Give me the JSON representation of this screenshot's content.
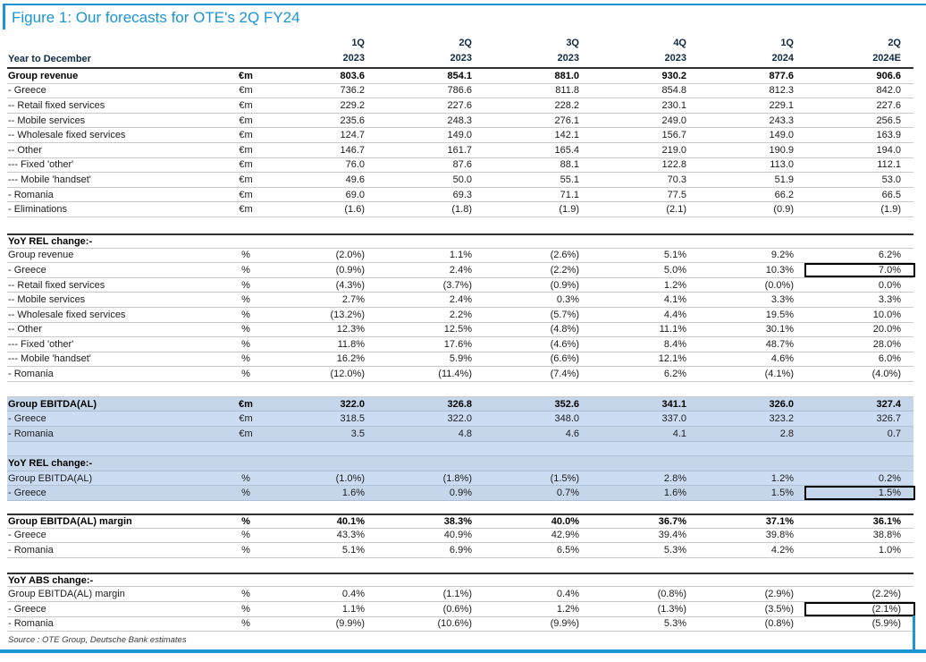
{
  "figure": {
    "title": "Figure 1: Our forecasts for OTE's 2Q FY24",
    "source": "Source : OTE Group, Deutsche Bank estimates"
  },
  "colors": {
    "accent_blue": "#1b95d1",
    "header_navy": "#102a43",
    "highlight_blue_a": "#c6d6ea",
    "highlight_blue_b": "#ccdcf2",
    "box_border": "#000000"
  },
  "table": {
    "corner_label": "Year to December",
    "columns": [
      {
        "q": "1Q",
        "year": "2023"
      },
      {
        "q": "2Q",
        "year": "2023"
      },
      {
        "q": "3Q",
        "year": "2023"
      },
      {
        "q": "4Q",
        "year": "2023"
      },
      {
        "q": "1Q",
        "year": "2024"
      },
      {
        "q": "2Q",
        "year": "2024E"
      }
    ],
    "sections": [
      {
        "name": "group-revenue",
        "highlight": false,
        "rows": [
          {
            "label": "Group revenue",
            "unit": "€m",
            "bold": true,
            "values": [
              "803.6",
              "854.1",
              "881.0",
              "930.2",
              "877.6",
              "906.6"
            ]
          },
          {
            "label": "- Greece",
            "unit": "€m",
            "values": [
              "736.2",
              "786.6",
              "811.8",
              "854.8",
              "812.3",
              "842.0"
            ]
          },
          {
            "label": "-- Retail fixed services",
            "unit": "€m",
            "values": [
              "229.2",
              "227.6",
              "228.2",
              "230.1",
              "229.1",
              "227.6"
            ]
          },
          {
            "label": "-- Mobile services",
            "unit": "€m",
            "values": [
              "235.6",
              "248.3",
              "276.1",
              "249.0",
              "243.3",
              "256.5"
            ]
          },
          {
            "label": "-- Wholesale fixed services",
            "unit": "€m",
            "values": [
              "124.7",
              "149.0",
              "142.1",
              "156.7",
              "149.0",
              "163.9"
            ]
          },
          {
            "label": "-- Other",
            "unit": "€m",
            "values": [
              "146.7",
              "161.7",
              "165.4",
              "219.0",
              "190.9",
              "194.0"
            ]
          },
          {
            "label": "--- Fixed 'other'",
            "unit": "€m",
            "values": [
              "76.0",
              "87.6",
              "88.1",
              "122.8",
              "113.0",
              "112.1"
            ]
          },
          {
            "label": "--- Mobile 'handset'",
            "unit": "€m",
            "values": [
              "49.6",
              "50.0",
              "55.1",
              "70.3",
              "51.9",
              "53.0"
            ]
          },
          {
            "label": "- Romania",
            "unit": "€m",
            "values": [
              "69.0",
              "69.3",
              "71.1",
              "77.5",
              "66.2",
              "66.5"
            ]
          },
          {
            "label": "- Eliminations",
            "unit": "€m",
            "values": [
              "(1.6)",
              "(1.8)",
              "(1.9)",
              "(2.1)",
              "(0.9)",
              "(1.9)"
            ]
          }
        ]
      },
      {
        "name": "yoy-rel-revenue",
        "highlight": false,
        "rows": [
          {
            "type": "heading",
            "label": "YoY REL change:-"
          },
          {
            "label": "Group revenue",
            "unit": "%",
            "values": [
              "(2.0%)",
              "1.1%",
              "(2.6%)",
              "5.1%",
              "9.2%",
              "6.2%"
            ]
          },
          {
            "label": "- Greece",
            "unit": "%",
            "box_last": true,
            "values": [
              "(0.9%)",
              "2.4%",
              "(2.2%)",
              "5.0%",
              "10.3%",
              "7.0%"
            ]
          },
          {
            "label": "-- Retail fixed services",
            "unit": "%",
            "values": [
              "(4.3%)",
              "(3.7%)",
              "(0.9%)",
              "1.2%",
              "(0.0%)",
              "0.0%"
            ]
          },
          {
            "label": "-- Mobile services",
            "unit": "%",
            "values": [
              "2.7%",
              "2.4%",
              "0.3%",
              "4.1%",
              "3.3%",
              "3.3%"
            ]
          },
          {
            "label": "-- Wholesale fixed services",
            "unit": "%",
            "values": [
              "(13.2%)",
              "2.2%",
              "(5.7%)",
              "4.4%",
              "19.5%",
              "10.0%"
            ]
          },
          {
            "label": "-- Other",
            "unit": "%",
            "values": [
              "12.3%",
              "12.5%",
              "(4.8%)",
              "11.1%",
              "30.1%",
              "20.0%"
            ]
          },
          {
            "label": "--- Fixed 'other'",
            "unit": "%",
            "values": [
              "11.8%",
              "17.6%",
              "(4.6%)",
              "8.4%",
              "48.7%",
              "28.0%"
            ]
          },
          {
            "label": "--- Mobile 'handset'",
            "unit": "%",
            "values": [
              "16.2%",
              "5.9%",
              "(6.6%)",
              "12.1%",
              "4.6%",
              "6.0%"
            ]
          },
          {
            "label": "- Romania",
            "unit": "%",
            "values": [
              "(12.0%)",
              "(11.4%)",
              "(7.4%)",
              "6.2%",
              "(4.1%)",
              "(4.0%)"
            ]
          }
        ]
      },
      {
        "name": "group-ebitda",
        "highlight": true,
        "rows": [
          {
            "label": "Group EBITDA(AL)",
            "unit": "€m",
            "bold": true,
            "values": [
              "322.0",
              "326.8",
              "352.6",
              "341.1",
              "326.0",
              "327.4"
            ]
          },
          {
            "label": "- Greece",
            "unit": "€m",
            "values": [
              "318.5",
              "322.0",
              "348.0",
              "337.0",
              "323.2",
              "326.7"
            ]
          },
          {
            "label": "- Romania",
            "unit": "€m",
            "values": [
              "3.5",
              "4.8",
              "4.6",
              "4.1",
              "2.8",
              "0.7"
            ]
          },
          {
            "type": "spacer"
          },
          {
            "type": "heading",
            "label": "YoY REL change:-"
          },
          {
            "label": "Group EBITDA(AL)",
            "unit": "%",
            "values": [
              "(1.0%)",
              "(1.8%)",
              "(1.5%)",
              "2.8%",
              "1.2%",
              "0.2%"
            ]
          },
          {
            "label": "- Greece",
            "unit": "%",
            "box_last": true,
            "values": [
              "1.6%",
              "0.9%",
              "0.7%",
              "1.6%",
              "1.5%",
              "1.5%"
            ]
          }
        ]
      },
      {
        "name": "ebitda-margin",
        "highlight": false,
        "rows": [
          {
            "label": "Group EBITDA(AL) margin",
            "unit": "%",
            "bold": true,
            "top_dark": true,
            "values": [
              "40.1%",
              "38.3%",
              "40.0%",
              "36.7%",
              "37.1%",
              "36.1%"
            ]
          },
          {
            "label": "- Greece",
            "unit": "%",
            "values": [
              "43.3%",
              "40.9%",
              "42.9%",
              "39.4%",
              "39.8%",
              "38.8%"
            ]
          },
          {
            "label": "- Romania",
            "unit": "%",
            "values": [
              "5.1%",
              "6.9%",
              "6.5%",
              "5.3%",
              "4.2%",
              "1.0%"
            ]
          }
        ]
      },
      {
        "name": "yoy-abs-margin",
        "highlight": false,
        "rows": [
          {
            "type": "heading",
            "label": "YoY ABS change:-"
          },
          {
            "label": "Group EBITDA(AL) margin",
            "unit": "%",
            "values": [
              "0.4%",
              "(1.1%)",
              "0.4%",
              "(0.8%)",
              "(2.9%)",
              "(2.2%)"
            ]
          },
          {
            "label": "- Greece",
            "unit": "%",
            "box_last": true,
            "values": [
              "1.1%",
              "(0.6%)",
              "1.2%",
              "(1.3%)",
              "(3.5%)",
              "(2.1%)"
            ]
          },
          {
            "label": "- Romania",
            "unit": "%",
            "values": [
              "(9.9%)",
              "(10.6%)",
              "(9.9%)",
              "5.3%",
              "(0.8%)",
              "(5.9%)"
            ]
          }
        ]
      }
    ]
  }
}
